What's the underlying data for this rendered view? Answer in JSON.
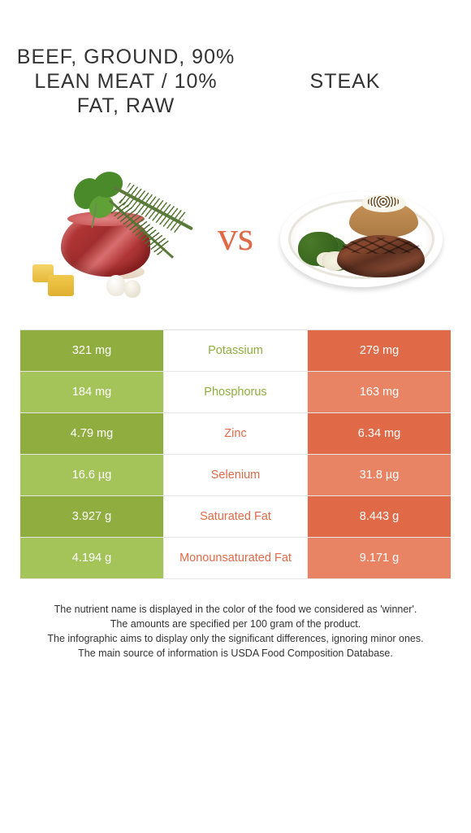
{
  "titles": {
    "left": "Beef, ground, 90% lean meat / 10% fat, raw",
    "right": "Steak"
  },
  "vs_label": "vs",
  "colors": {
    "left_primary": "#8fae3f",
    "left_alt": "#a4c45a",
    "right_primary": "#e06a47",
    "right_alt": "#e88363",
    "text_green": "#8fae3f",
    "text_orange": "#e06a47",
    "background": "#ffffff"
  },
  "typography": {
    "title_fontsize": 25,
    "title_weight": 300,
    "cell_fontsize": 14.5,
    "footer_fontsize": 12.5
  },
  "rows": [
    {
      "left": "321 mg",
      "label": "Potassium",
      "right": "279 mg",
      "winner": "left"
    },
    {
      "left": "184 mg",
      "label": "Phosphorus",
      "right": "163 mg",
      "winner": "left"
    },
    {
      "left": "4.79 mg",
      "label": "Zinc",
      "right": "6.34 mg",
      "winner": "right"
    },
    {
      "left": "16.6 µg",
      "label": "Selenium",
      "right": "31.8 µg",
      "winner": "right"
    },
    {
      "left": "3.927 g",
      "label": "Saturated Fat",
      "right": "8.443 g",
      "winner": "right"
    },
    {
      "left": "4.194 g",
      "label": "Monounsaturated Fat",
      "right": "9.171 g",
      "winner": "right"
    }
  ],
  "footer": {
    "line1": "The nutrient name is displayed in the color of the food we considered as 'winner'.",
    "line2": "The amounts are specified per 100 gram of the product.",
    "line3": "The infographic aims to display only the significant differences, ignoring minor ones.",
    "line4": "The main source of information is USDA Food Composition Database."
  }
}
